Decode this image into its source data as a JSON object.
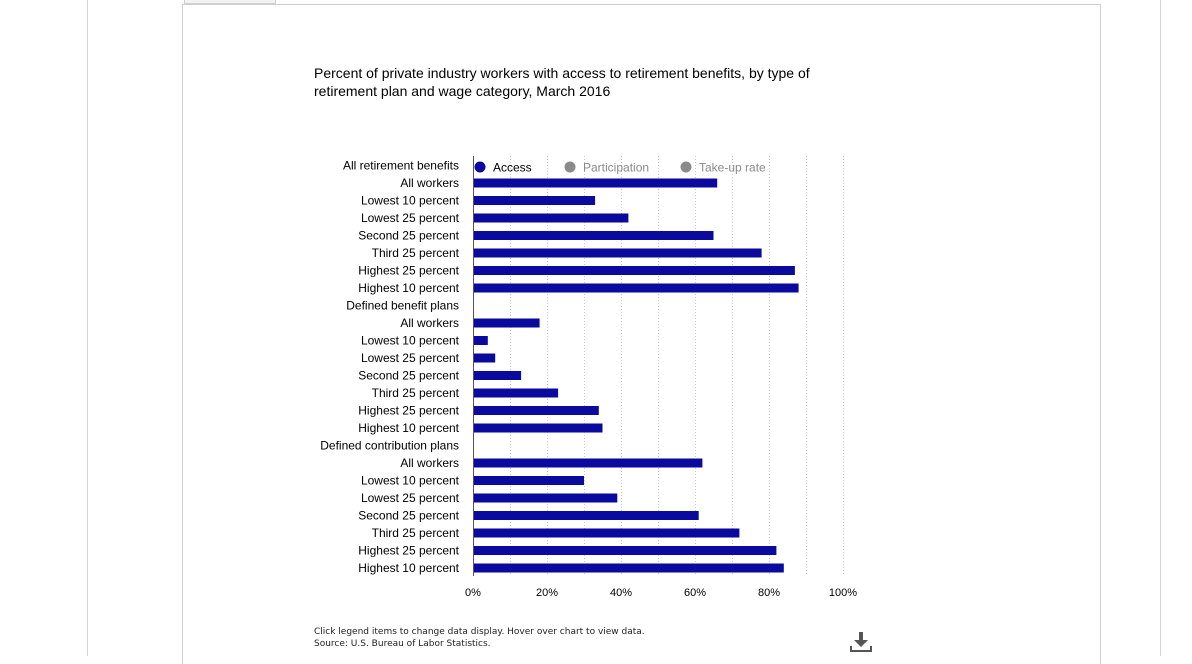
{
  "chart_data": {
    "type": "bar",
    "orientation": "horizontal",
    "title": "Percent of private industry workers with access to retirement benefits, by type of retirement plan and wage category, March 2016",
    "xlabel": "",
    "ylabel": "",
    "xlim": [
      0,
      100
    ],
    "x_ticks": [
      "0%",
      "20%",
      "40%",
      "60%",
      "80%",
      "100%"
    ],
    "x_tick_values": [
      0,
      20,
      40,
      60,
      80,
      100
    ],
    "grid": true,
    "legend_position": "top",
    "legend": [
      {
        "name": "Access",
        "active": true,
        "color": "#0a0a9e"
      },
      {
        "name": "Participation",
        "active": false,
        "color": "#8a8a8a"
      },
      {
        "name": "Take-up rate",
        "active": false,
        "color": "#8a8a8a"
      }
    ],
    "categories": [
      {
        "label": "All retirement benefits",
        "group_header": true,
        "value": null
      },
      {
        "label": "All workers",
        "value": 66
      },
      {
        "label": "Lowest 10 percent",
        "value": 33
      },
      {
        "label": "Lowest 25 percent",
        "value": 42
      },
      {
        "label": "Second 25 percent",
        "value": 65
      },
      {
        "label": "Third 25 percent",
        "value": 78
      },
      {
        "label": "Highest 25 percent",
        "value": 87
      },
      {
        "label": "Highest 10 percent",
        "value": 88
      },
      {
        "label": "Defined benefit plans",
        "group_header": true,
        "value": null
      },
      {
        "label": "All workers",
        "value": 18
      },
      {
        "label": "Lowest 10 percent",
        "value": 4
      },
      {
        "label": "Lowest 25 percent",
        "value": 6
      },
      {
        "label": "Second 25 percent",
        "value": 13
      },
      {
        "label": "Third 25 percent",
        "value": 23
      },
      {
        "label": "Highest 25 percent",
        "value": 34
      },
      {
        "label": "Highest 10 percent",
        "value": 35
      },
      {
        "label": "Defined contribution plans",
        "group_header": true,
        "value": null
      },
      {
        "label": "All workers",
        "value": 62
      },
      {
        "label": "Lowest 10 percent",
        "value": 30
      },
      {
        "label": "Lowest 25 percent",
        "value": 39
      },
      {
        "label": "Second 25 percent",
        "value": 61
      },
      {
        "label": "Third 25 percent",
        "value": 72
      },
      {
        "label": "Highest 25 percent",
        "value": 82
      },
      {
        "label": "Highest 10 percent",
        "value": 84
      }
    ],
    "bar_color": "#0a0a9e"
  },
  "footer": {
    "note": "Click legend items to change data display. Hover over chart to view data.",
    "source": "Source: U.S. Bureau of Labor Statistics."
  },
  "icons": {
    "download": "download-icon"
  }
}
